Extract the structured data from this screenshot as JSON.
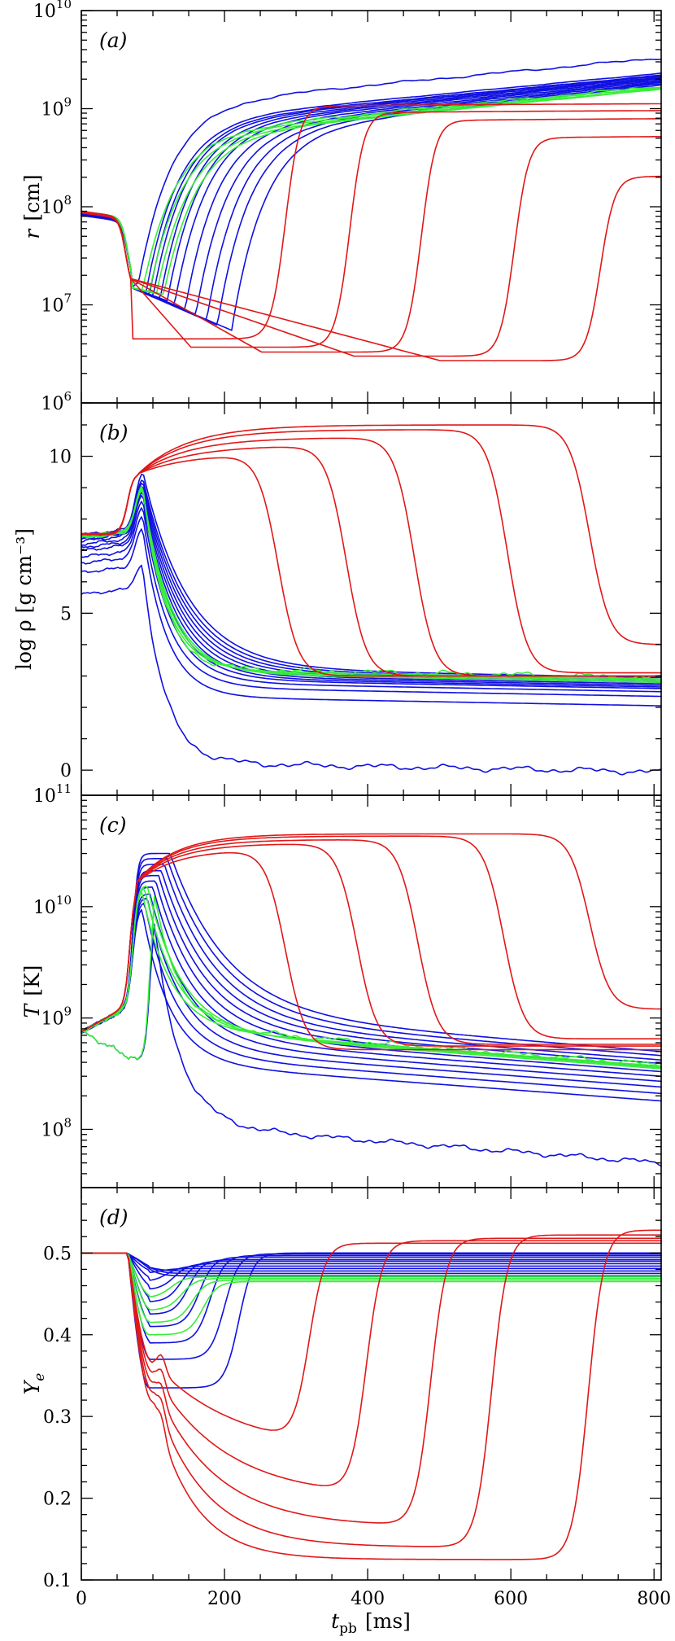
{
  "colors": {
    "blue": "#1010e0",
    "green": "#38ee38",
    "red": "#e01818"
  },
  "chart_data": [
    {
      "type": "line",
      "panel_tag": "(a)",
      "ylabel_var": "r",
      "ylabel_unit": "[cm]",
      "yscale": "log",
      "xlim": [
        0,
        810
      ],
      "ylim": [
        1000000,
        10000000000
      ],
      "yticks": [
        {
          "value": 1000000,
          "base": "10",
          "exp": "6"
        },
        {
          "value": 10000000,
          "base": "10",
          "exp": "7"
        },
        {
          "value": 100000000,
          "base": "10",
          "exp": "8"
        },
        {
          "value": 1000000000,
          "base": "10",
          "exp": "9"
        },
        {
          "value": 10000000000,
          "base": "10",
          "exp": "10"
        }
      ],
      "red_tracers": [
        {
          "t_min": 70,
          "t_max": 700,
          "min_value": 2700000,
          "final_value": 200000000
        },
        {
          "t_min": 70,
          "t_max": 580,
          "min_value": 3000000,
          "final_value": 500000000
        },
        {
          "t_min": 70,
          "t_max": 450,
          "min_value": 3300000,
          "final_value": 750000000
        },
        {
          "t_min": 70,
          "t_max": 350,
          "min_value": 3700000,
          "final_value": 900000000
        },
        {
          "t_min": 70,
          "t_max": 260,
          "min_value": 4500000,
          "final_value": 1050000000
        }
      ],
      "blue_tracers": [
        {
          "t_min": 80,
          "min_value": 17000000,
          "final_value": 3300000000
        },
        {
          "t_min": 90,
          "min_value": 13000000,
          "final_value": 2300000000
        },
        {
          "t_min": 95,
          "min_value": 12500000,
          "final_value": 2200000000
        },
        {
          "t_min": 100,
          "min_value": 12000000,
          "final_value": 2150000000
        },
        {
          "t_min": 110,
          "min_value": 11500000,
          "final_value": 2100000000
        },
        {
          "t_min": 120,
          "min_value": 11000000,
          "final_value": 2050000000
        },
        {
          "t_min": 130,
          "min_value": 10000000,
          "final_value": 2000000000
        },
        {
          "t_min": 145,
          "min_value": 9000000,
          "final_value": 1950000000
        },
        {
          "t_min": 160,
          "min_value": 8000000,
          "final_value": 1900000000
        },
        {
          "t_min": 175,
          "min_value": 7000000,
          "final_value": 1850000000
        },
        {
          "t_min": 190,
          "min_value": 6200000,
          "final_value": 1800000000
        },
        {
          "t_min": 210,
          "min_value": 5500000,
          "final_value": 1750000000
        }
      ],
      "green_tracers": [
        {
          "t_min": 85,
          "min_value": 14000000,
          "final_value": 1700000000
        },
        {
          "t_min": 95,
          "min_value": 13500000,
          "final_value": 1650000000
        },
        {
          "t_min": 105,
          "min_value": 13000000,
          "final_value": 1600000000
        },
        {
          "t_min": 115,
          "min_value": 12800000,
          "final_value": 1580000000
        }
      ]
    },
    {
      "type": "line",
      "panel_tag": "(b)",
      "ylabel": "log ρ [g cm⁻³]",
      "yscale": "linear",
      "xlim": [
        0,
        810
      ],
      "ylim": [
        -0.8,
        11.7
      ],
      "yticks": [
        {
          "value": 0,
          "label": "0"
        },
        {
          "value": 5,
          "label": "5"
        },
        {
          "value": 10,
          "label": "10"
        }
      ],
      "red_tracers": [
        {
          "t_start": 70,
          "peak": 11.0,
          "t_drop": 710,
          "end_value": 4.0
        },
        {
          "t_start": 70,
          "peak": 10.85,
          "t_drop": 595,
          "end_value": 3.1
        },
        {
          "t_start": 70,
          "peak": 10.6,
          "t_drop": 465,
          "end_value": 3.0
        },
        {
          "t_start": 70,
          "peak": 10.35,
          "t_drop": 370,
          "end_value": 3.0
        },
        {
          "t_start": 70,
          "peak": 10.1,
          "t_drop": 275,
          "end_value": 3.0
        }
      ],
      "blue_tracers": [
        {
          "initial": 5.6,
          "peak": 6.6,
          "end_value": -0.05
        },
        {
          "initial": 6.3,
          "peak": 7.8,
          "end_value": 2.05
        },
        {
          "initial": 6.6,
          "peak": 8.2,
          "end_value": 2.35
        },
        {
          "initial": 6.8,
          "peak": 8.5,
          "end_value": 2.5
        },
        {
          "initial": 7.0,
          "peak": 8.7,
          "end_value": 2.6
        },
        {
          "initial": 7.1,
          "peak": 8.9,
          "end_value": 2.65
        },
        {
          "initial": 7.2,
          "peak": 9.0,
          "end_value": 2.7
        },
        {
          "initial": 7.3,
          "peak": 9.1,
          "end_value": 2.75
        },
        {
          "initial": 7.35,
          "peak": 9.2,
          "end_value": 2.8
        },
        {
          "initial": 7.4,
          "peak": 9.3,
          "end_value": 2.85
        },
        {
          "initial": 7.45,
          "peak": 9.4,
          "end_value": 2.9
        },
        {
          "initial": 7.5,
          "peak": 9.6,
          "end_value": 2.95
        }
      ],
      "green_tracers": [
        {
          "initial": 7.4,
          "peak": 9.2,
          "end_value": 2.95
        },
        {
          "initial": 7.4,
          "peak": 9.15,
          "end_value": 2.9
        },
        {
          "initial": 7.45,
          "peak": 9.1,
          "end_value": 2.85
        },
        {
          "initial": 7.45,
          "peak": 9.05,
          "end_value": 2.8
        }
      ]
    },
    {
      "type": "line",
      "panel_tag": "(c)",
      "ylabel_var": "T",
      "ylabel_unit": "[K]",
      "yscale": "log",
      "xlim": [
        0,
        810
      ],
      "ylim": [
        30000000,
        100000000000
      ],
      "yticks": [
        {
          "value": 100000000,
          "base": "10",
          "exp": "8"
        },
        {
          "value": 1000000000,
          "base": "10",
          "exp": "9"
        },
        {
          "value": 10000000000,
          "base": "10",
          "exp": "10"
        },
        {
          "value": 100000000000,
          "base": "10",
          "exp": "11"
        }
      ],
      "red_tracers": [
        {
          "peak": 45000000000,
          "t_drop": 710,
          "end_value": 1200000000
        },
        {
          "peak": 43000000000,
          "t_drop": 590,
          "end_value": 650000000
        },
        {
          "peak": 40000000000,
          "t_drop": 470,
          "end_value": 580000000
        },
        {
          "peak": 37000000000,
          "t_drop": 385,
          "end_value": 560000000
        },
        {
          "peak": 33000000000,
          "t_drop": 285,
          "end_value": 520000000
        }
      ],
      "blue_tracers": [
        {
          "peak": 8500000000,
          "end_value": 50000000
        },
        {
          "peak": 10000000000,
          "end_value": 180000000
        },
        {
          "peak": 11000000000,
          "end_value": 210000000
        },
        {
          "peak": 12000000000,
          "end_value": 240000000
        },
        {
          "peak": 13000000000,
          "end_value": 270000000
        },
        {
          "peak": 15000000000,
          "end_value": 300000000
        },
        {
          "peak": 17000000000,
          "end_value": 330000000
        },
        {
          "peak": 19000000000,
          "end_value": 360000000
        },
        {
          "peak": 21000000000,
          "end_value": 390000000
        },
        {
          "peak": 24000000000,
          "end_value": 420000000
        },
        {
          "peak": 27000000000,
          "end_value": 460000000
        },
        {
          "peak": 30000000000,
          "end_value": 500000000
        }
      ],
      "green_tracers": [
        {
          "peak": 14000000000,
          "end_value": 380000000
        },
        {
          "peak": 14500000000,
          "end_value": 370000000
        },
        {
          "peak": 15000000000,
          "end_value": 360000000
        },
        {
          "peak": 15500000000,
          "end_value": 350000000
        }
      ]
    },
    {
      "type": "line",
      "panel_tag": "(d)",
      "ylabel_var": "Y",
      "ylabel_sub": "e",
      "yscale": "linear",
      "xlim": [
        0,
        810
      ],
      "ylim": [
        0.1,
        0.58
      ],
      "yticks": [
        {
          "value": 0.1,
          "label": "0.1"
        },
        {
          "value": 0.2,
          "label": "0.2"
        },
        {
          "value": 0.3,
          "label": "0.3"
        },
        {
          "value": 0.4,
          "label": "0.4"
        },
        {
          "value": 0.5,
          "label": "0.5"
        }
      ],
      "xlabel_var": "t",
      "xlabel_sub": "pb",
      "xlabel_unit": "[ms]",
      "xticks": [
        {
          "value": 0,
          "label": "0"
        },
        {
          "value": 200,
          "label": "200"
        },
        {
          "value": 400,
          "label": "400"
        },
        {
          "value": 600,
          "label": "600"
        },
        {
          "value": 800,
          "label": "800"
        }
      ],
      "red_tracers": [
        {
          "min_value": 0.125,
          "t_rise": 690,
          "final_value": 0.528
        },
        {
          "min_value": 0.14,
          "t_rise": 555,
          "final_value": 0.522
        },
        {
          "min_value": 0.165,
          "t_rise": 470,
          "final_value": 0.518
        },
        {
          "min_value": 0.2,
          "t_rise": 380,
          "final_value": 0.515
        },
        {
          "min_value": 0.255,
          "t_rise": 300,
          "final_value": 0.512
        }
      ],
      "blue_tracers": [
        {
          "min_value": 0.335,
          "t_rise": 220,
          "final_value": 0.5
        },
        {
          "min_value": 0.37,
          "t_rise": 200,
          "final_value": 0.499
        },
        {
          "min_value": 0.39,
          "t_rise": 180,
          "final_value": 0.497
        },
        {
          "min_value": 0.41,
          "t_rise": 165,
          "final_value": 0.495
        },
        {
          "min_value": 0.425,
          "t_rise": 150,
          "final_value": 0.492
        },
        {
          "min_value": 0.44,
          "t_rise": 140,
          "final_value": 0.49
        },
        {
          "min_value": 0.455,
          "t_rise": 130,
          "final_value": 0.487
        },
        {
          "min_value": 0.465,
          "t_rise": 120,
          "final_value": 0.484
        },
        {
          "min_value": 0.475,
          "t_rise": 110,
          "final_value": 0.481
        },
        {
          "min_value": 0.485,
          "t_rise": 100,
          "final_value": 0.478
        },
        {
          "min_value": 0.49,
          "t_rise": 95,
          "final_value": 0.475
        },
        {
          "min_value": 0.495,
          "t_rise": 90,
          "final_value": 0.472
        }
      ],
      "green_tracers": [
        {
          "min_value": 0.4,
          "t_rise": 170,
          "final_value": 0.465
        },
        {
          "min_value": 0.415,
          "t_rise": 155,
          "final_value": 0.467
        },
        {
          "min_value": 0.43,
          "t_rise": 140,
          "final_value": 0.469
        },
        {
          "min_value": 0.445,
          "t_rise": 125,
          "final_value": 0.471
        }
      ]
    }
  ]
}
